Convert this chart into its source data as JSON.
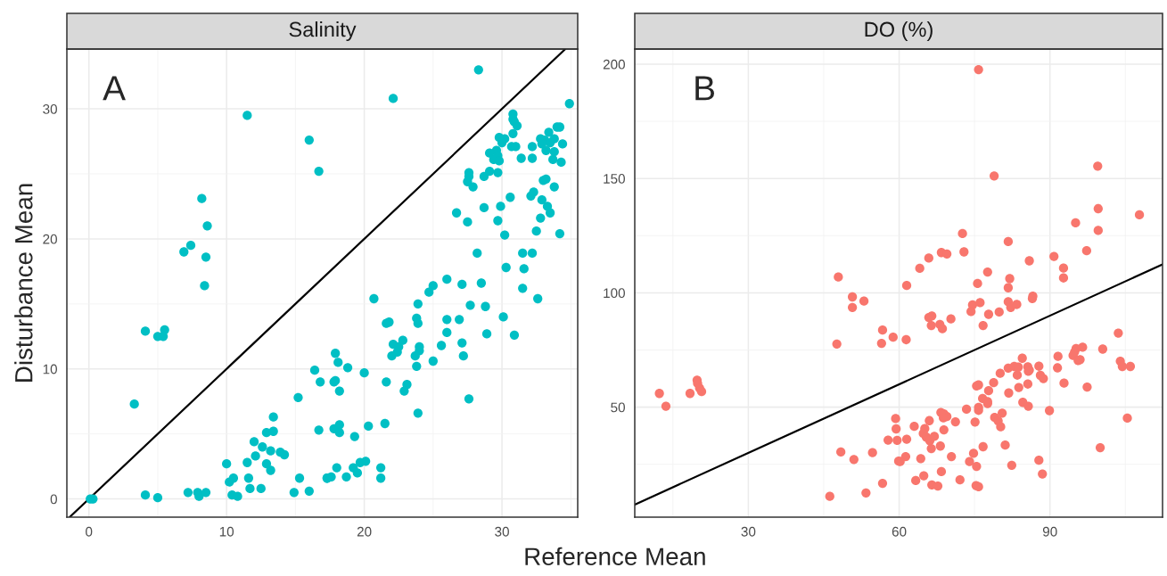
{
  "chart_data": [
    {
      "type": "scatter",
      "title": "Salinity",
      "ylabel": "Disturbance Mean",
      "xlabel": "Reference Mean",
      "annotations": [
        "A"
      ],
      "xlim": [
        -1.6,
        35.5
      ],
      "ylim": [
        -1.4,
        34.6
      ],
      "xticks": [
        0,
        10,
        20,
        30
      ],
      "yticks": [
        0,
        10,
        20,
        30
      ],
      "grid": true,
      "series": [
        {
          "marker": "circle",
          "color": "#00bfc4",
          "x": [
            11.5,
            16.0,
            16.7,
            8.2,
            8.6,
            7.4,
            6.9,
            8.5,
            8.4,
            4.1,
            5.0,
            5.5,
            5.4,
            3.3,
            16.4,
            16.8,
            15.2,
            13.4,
            12.9,
            13.4,
            16.7,
            12.0,
            12.6,
            13.2,
            13.9,
            14.2,
            12.1,
            10.0,
            11.5,
            12.9,
            13.2,
            10.5,
            10.2,
            11.6,
            15.3,
            17.3,
            11.7,
            12.5,
            10.4,
            10.8,
            14.9,
            16.0,
            7.2,
            7.9,
            8.0,
            8.5,
            4.1,
            5.0,
            0.1,
            0.3,
            28.3,
            22.1,
            34.9,
            30.8,
            30.8,
            30.9,
            31.1,
            34.0,
            34.2,
            30.8,
            33.4,
            29.8,
            30.2,
            30.0,
            32.8,
            33.1,
            33.8,
            33.5,
            32.9,
            34.4,
            32.2,
            30.7,
            31.0,
            33.2,
            33.8,
            29.1,
            29.6,
            29.7,
            29.4,
            29.8,
            31.4,
            32.2,
            33.7,
            34.3,
            27.6,
            27.6,
            27.5,
            27.9,
            28.7,
            29.1,
            29.7,
            33.0,
            33.2,
            33.8,
            30.6,
            32.1,
            32.3,
            32.9,
            33.3,
            33.5,
            29.9,
            28.7,
            26.7,
            27.5,
            29.7,
            32.8,
            32.5,
            34.2,
            30.2,
            28.2,
            31.5,
            32.2,
            30.3,
            31.6,
            26.0,
            27.1,
            28.5,
            31.5,
            25.0,
            24.7,
            32.6,
            20.7,
            23.9,
            27.7,
            28.8,
            23.8,
            23.9,
            21.6,
            21.8,
            26.0,
            26.9,
            30.1,
            26.0,
            28.9,
            30.9,
            22.1,
            22.8,
            22.5,
            22.4,
            22.0,
            24.0,
            24.0,
            23.7,
            23.8,
            25.6,
            27.1,
            27.2,
            25.0,
            17.9,
            18.1,
            18.8,
            20.0,
            17.8,
            17.9,
            18.2,
            21.6,
            23.1,
            22.9,
            27.6,
            23.9,
            17.8,
            18.2,
            18.2,
            19.3,
            20.3,
            21.5,
            18.0,
            17.3,
            17.6,
            18.7,
            19.2,
            19.5,
            19.7,
            20.1,
            21.2,
            21.2
          ],
          "values": [
            29.5,
            27.6,
            25.2,
            23.1,
            21.0,
            19.5,
            19.0,
            18.6,
            16.4,
            12.9,
            12.5,
            13.0,
            12.5,
            7.3,
            9.9,
            9.0,
            7.8,
            6.3,
            5.1,
            5.2,
            5.3,
            4.4,
            4.0,
            3.7,
            3.6,
            3.4,
            3.3,
            2.7,
            2.8,
            2.7,
            2.2,
            1.6,
            1.3,
            1.6,
            1.6,
            1.6,
            0.8,
            0.8,
            0.3,
            0.2,
            0.5,
            0.6,
            0.5,
            0.5,
            0.2,
            0.5,
            0.3,
            0.1,
            0.0,
            0.0,
            33.0,
            30.8,
            30.4,
            29.6,
            29.2,
            29.0,
            28.7,
            28.6,
            28.6,
            28.1,
            28.2,
            27.8,
            27.7,
            27.4,
            27.7,
            27.6,
            27.7,
            27.4,
            27.3,
            27.3,
            27.1,
            27.1,
            27.1,
            26.8,
            26.7,
            26.6,
            26.8,
            26.4,
            26.1,
            26.0,
            26.2,
            26.2,
            26.1,
            25.9,
            25.1,
            24.8,
            24.4,
            24.0,
            24.8,
            25.2,
            25.1,
            24.5,
            24.6,
            24.0,
            23.2,
            23.3,
            23.6,
            23.0,
            22.5,
            22.0,
            22.5,
            22.4,
            22.0,
            21.3,
            21.4,
            21.6,
            20.6,
            20.4,
            20.3,
            18.9,
            18.9,
            18.9,
            17.8,
            17.7,
            16.9,
            16.5,
            16.6,
            16.2,
            16.4,
            15.9,
            15.4,
            15.4,
            15.0,
            14.9,
            14.8,
            13.9,
            13.5,
            13.5,
            13.6,
            13.8,
            13.8,
            14.0,
            12.8,
            12.7,
            12.6,
            11.9,
            12.2,
            11.7,
            11.3,
            11.0,
            11.7,
            11.4,
            11.0,
            10.2,
            11.8,
            12.0,
            11.0,
            10.6,
            11.2,
            10.5,
            10.1,
            9.7,
            9.0,
            9.1,
            8.3,
            9.0,
            8.8,
            8.3,
            7.7,
            6.6,
            5.4,
            5.7,
            5.1,
            4.8,
            5.6,
            5.8,
            2.4,
            1.6,
            1.7,
            1.7,
            2.4,
            2.0,
            2.8,
            2.9,
            2.4,
            1.6
          ]
        },
        {
          "type": "line",
          "color": "#000000",
          "x": [
            -1.4,
            34.6
          ],
          "values": [
            -1.4,
            34.6
          ]
        }
      ]
    },
    {
      "type": "scatter",
      "title": "DO (%)",
      "annotations": [
        "B"
      ],
      "xlim": [
        7.4,
        112.4
      ],
      "ylim": [
        1.9,
        206.6
      ],
      "xticks": [
        30,
        60,
        90
      ],
      "yticks": [
        50,
        100,
        150,
        200
      ],
      "grid": true,
      "series": [
        {
          "marker": "circle",
          "color": "#f8766d",
          "x": [
            47.9,
            50.7,
            50.7,
            53.0,
            56.7,
            58.8,
            56.5,
            47.6,
            12.3,
            13.6,
            18.4,
            19.8,
            19.9,
            20.3,
            20.7,
            59.3,
            59.4,
            59.6,
            57.8,
            48.4,
            51.0,
            54.7,
            59.9,
            56.7,
            53.4,
            46.2,
            75.8,
            99.5,
            78.9,
            99.6,
            107.8,
            95.1,
            99.6,
            72.6,
            81.7,
            68.4,
            69.5,
            72.9,
            65.9,
            97.3,
            90.8,
            85.9,
            64.1,
            77.6,
            92.7,
            92.7,
            61.5,
            75.6,
            82.0,
            81.7,
            86.6,
            86.5,
            74.6,
            74.3,
            76.1,
            81.7,
            82.2,
            83.4,
            79.9,
            77.8,
            65.9,
            66.5,
            66.4,
            68.1,
            68.6,
            70.3,
            76.7,
            61.4,
            103.6,
            96.5,
            95.2,
            94.9,
            94.6,
            95.6,
            96.0,
            100.5,
            104.0,
            104.4,
            106.0,
            91.6,
            91.5,
            92.8,
            97.4,
            84.5,
            87.8,
            85.6,
            85.9,
            85.7,
            85.6,
            88.1,
            88.7,
            81.7,
            82.9,
            83.7,
            83.5,
            80.1,
            78.8,
            77.8,
            75.4,
            75.8,
            76.6,
            81.8,
            83.8,
            84.6,
            85.7,
            89.9,
            105.4,
            100.0,
            77.6,
            77.6,
            75.8,
            75.8,
            73.4,
            80.5,
            79.0,
            79.7,
            80.2,
            75.1,
            71.2,
            68.3,
            68.9,
            69.5,
            68.8,
            68.9,
            66.0,
            63.0,
            61.5,
            65.1,
            64.8,
            65.4,
            66.1,
            67.0,
            66.4,
            68.2,
            70.4,
            64.3,
            61.3,
            60.2,
            74.8,
            74.0,
            75.4,
            76.7,
            81.1,
            82.4,
            87.8,
            88.5,
            68.4,
            72.1,
            63.3,
            64.9,
            66.5,
            67.7,
            75.3,
            75.8
          ],
          "values": [
            106.9,
            98.2,
            93.6,
            96.4,
            83.7,
            80.6,
            77.9,
            77.6,
            56.0,
            50.4,
            56.0,
            61.8,
            60.4,
            58.3,
            56.8,
            45.0,
            40.5,
            35.5,
            35.6,
            30.4,
            27.1,
            30.1,
            26.4,
            16.7,
            12.5,
            11.0,
            197.6,
            155.4,
            151.1,
            136.8,
            134.1,
            130.6,
            127.3,
            125.9,
            122.4,
            117.6,
            117.0,
            117.9,
            115.2,
            118.4,
            115.9,
            114.0,
            110.7,
            109.1,
            110.8,
            106.5,
            103.2,
            104.1,
            106.2,
            102.2,
            98.5,
            97.5,
            94.7,
            91.8,
            95.7,
            96.1,
            93.6,
            94.9,
            91.6,
            90.6,
            89.2,
            89.9,
            85.7,
            86.2,
            84.3,
            88.6,
            85.7,
            79.5,
            82.4,
            76.2,
            75.6,
            74.1,
            72.6,
            70.4,
            70.8,
            75.4,
            70.1,
            67.8,
            67.8,
            72.2,
            67.2,
            60.5,
            58.8,
            71.4,
            67.9,
            67.6,
            66.2,
            65.7,
            60.1,
            63.9,
            62.5,
            67.1,
            67.8,
            67.5,
            64.0,
            64.8,
            60.7,
            57.2,
            59.3,
            59.7,
            53.8,
            56.2,
            58.6,
            52.1,
            50.4,
            48.5,
            45.2,
            32.3,
            52.4,
            51.6,
            49.9,
            48.6,
            49.1,
            47.4,
            45.5,
            44.0,
            41.4,
            43.5,
            43.6,
            47.7,
            47.1,
            45.9,
            45.3,
            40.1,
            44.1,
            41.6,
            36.0,
            40.6,
            38.5,
            36.9,
            35.3,
            37.2,
            31.9,
            33.0,
            28.4,
            27.5,
            28.4,
            26.2,
            29.8,
            26.2,
            24.1,
            32.7,
            33.4,
            24.6,
            26.8,
            20.8,
            21.8,
            18.2,
            17.9,
            20.0,
            16.0,
            15.5,
            15.7,
            15.2
          ]
        },
        {
          "type": "line",
          "color": "#000000",
          "x": [
            7.4,
            112.4
          ],
          "values": [
            7.4,
            112.4
          ]
        }
      ]
    }
  ]
}
